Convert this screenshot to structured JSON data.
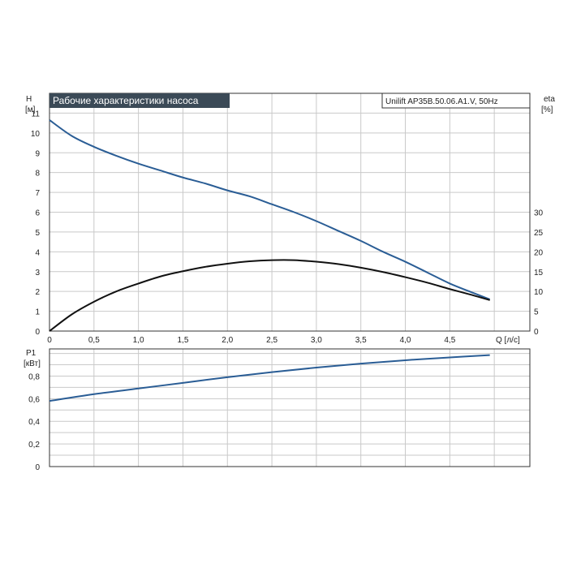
{
  "title": "Рабочие характеристики насоса",
  "model": "Unilift AP35B.50.06.A1.V, 50Hz",
  "colors": {
    "head": "#2a5d95",
    "eta": "#111111",
    "power": "#2a5d95",
    "title_bg": "#3b4a57",
    "title_text": "#ffffff",
    "grid": "#c9c9c9"
  },
  "chart_data": [
    {
      "type": "line",
      "name": "top",
      "x_label": "Q [л/с]",
      "y_left_label": [
        "H",
        "[м]"
      ],
      "y_right_label": [
        "eta",
        "[%]"
      ],
      "xlim": [
        0,
        5.4
      ],
      "ylim_left": [
        0,
        12
      ],
      "ylim_right": [
        0,
        60
      ],
      "x_ticks": [
        "0",
        "0,5",
        "1,0",
        "1,5",
        "2,0",
        "2,5",
        "3,0",
        "3,5",
        "4,0",
        "4,5"
      ],
      "x_tick_values": [
        0,
        0.5,
        1.0,
        1.5,
        2.0,
        2.5,
        3.0,
        3.5,
        4.0,
        4.5
      ],
      "y_left_ticks": [
        "0",
        "1",
        "2",
        "3",
        "4",
        "5",
        "6",
        "7",
        "8",
        "9",
        "10",
        "11"
      ],
      "y_left_tick_values": [
        0,
        1,
        2,
        3,
        4,
        5,
        6,
        7,
        8,
        9,
        10,
        11
      ],
      "y_right_ticks": [
        "0",
        "5",
        "10",
        "15",
        "20",
        "25",
        "30"
      ],
      "y_right_tick_values": [
        0,
        5,
        10,
        15,
        20,
        25,
        30
      ],
      "series": [
        {
          "axis": "left",
          "x": [
            0,
            0.25,
            0.5,
            0.75,
            1.0,
            1.25,
            1.5,
            1.75,
            2.0,
            2.25,
            2.5,
            2.75,
            3.0,
            3.25,
            3.5,
            3.75,
            4.0,
            4.25,
            4.5,
            4.75,
            4.95
          ],
          "y": [
            10.65,
            9.85,
            9.3,
            8.85,
            8.45,
            8.1,
            7.75,
            7.45,
            7.1,
            6.8,
            6.4,
            6.0,
            5.55,
            5.05,
            4.55,
            4.0,
            3.5,
            2.95,
            2.4,
            1.95,
            1.6
          ]
        },
        {
          "axis": "right",
          "x": [
            0,
            0.25,
            0.5,
            0.75,
            1.0,
            1.25,
            1.5,
            1.75,
            2.0,
            2.25,
            2.5,
            2.75,
            3.0,
            3.25,
            3.5,
            3.75,
            4.0,
            4.25,
            4.5,
            4.75,
            4.95
          ],
          "y": [
            0,
            4.2,
            7.4,
            10,
            12,
            13.8,
            15.1,
            16.2,
            17,
            17.6,
            17.9,
            17.9,
            17.5,
            16.9,
            16,
            14.9,
            13.6,
            12.2,
            10.6,
            9.1,
            7.8
          ]
        }
      ]
    },
    {
      "type": "line",
      "name": "bottom",
      "y_left_label": [
        "P1",
        "[кВт]"
      ],
      "xlim": [
        0,
        5.4
      ],
      "ylim_left": [
        0,
        1.04
      ],
      "y_left_ticks": [
        "0",
        "0,2",
        "0,4",
        "0,6",
        "0,8"
      ],
      "y_left_tick_values": [
        0,
        0.2,
        0.4,
        0.6,
        0.8
      ],
      "series": [
        {
          "axis": "left",
          "x": [
            0,
            0.5,
            1.0,
            1.5,
            2.0,
            2.5,
            3.0,
            3.5,
            4.0,
            4.5,
            4.95
          ],
          "y": [
            0.58,
            0.64,
            0.69,
            0.74,
            0.79,
            0.835,
            0.875,
            0.91,
            0.94,
            0.965,
            0.985
          ]
        }
      ]
    }
  ]
}
